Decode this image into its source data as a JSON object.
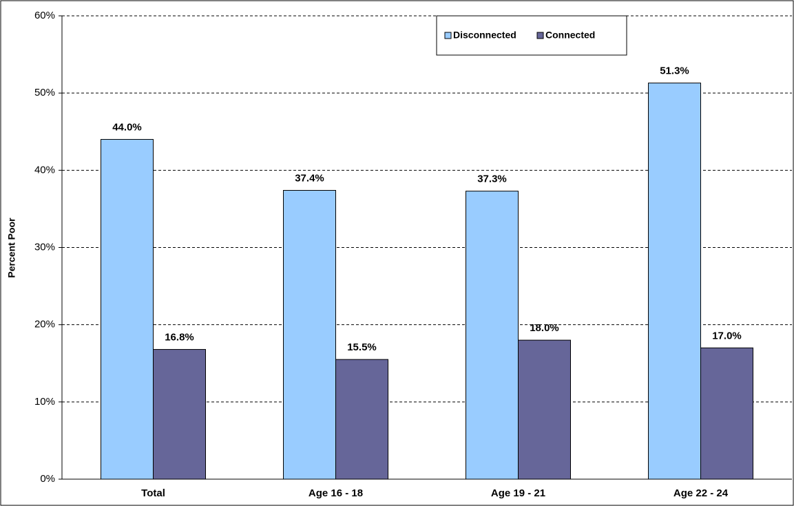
{
  "chart_data": {
    "type": "bar",
    "y_label": "Percent Poor",
    "categories": [
      "Total",
      "Age 16 - 18",
      "Age 19 - 21",
      "Age 22 - 24"
    ],
    "series": [
      {
        "name": "Disconnected",
        "color": "#99ccff",
        "values": [
          44.0,
          37.4,
          37.3,
          51.3
        ],
        "value_labels": [
          "44.0%",
          "37.4%",
          "37.3%",
          "51.3%"
        ]
      },
      {
        "name": "Connected",
        "color": "#666699",
        "values": [
          16.8,
          15.5,
          18.0,
          17.0
        ],
        "value_labels": [
          "16.8%",
          "15.5%",
          "18.0%",
          "17.0%"
        ]
      }
    ],
    "ylim": [
      0,
      60
    ],
    "yticks": [
      {
        "value": 0,
        "label": "0%"
      },
      {
        "value": 10,
        "label": "10%"
      },
      {
        "value": 20,
        "label": "20%"
      },
      {
        "value": 30,
        "label": "30%"
      },
      {
        "value": 40,
        "label": "40%"
      },
      {
        "value": 50,
        "label": "50%"
      },
      {
        "value": 60,
        "label": "60%"
      }
    ],
    "grid": true,
    "legend": "top"
  }
}
